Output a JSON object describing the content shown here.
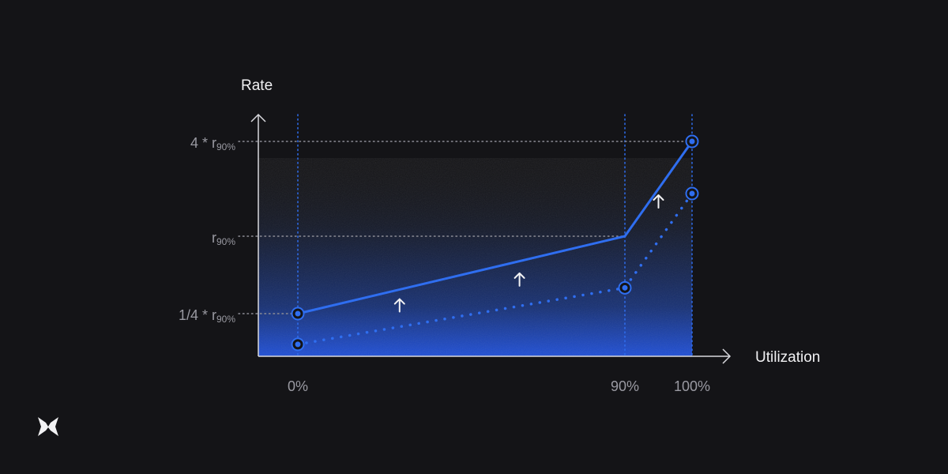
{
  "chart_data": {
    "type": "line",
    "title": "",
    "xlabel": "Utilization",
    "ylabel": "Rate",
    "x_ticks": [
      {
        "value": 0,
        "label": "0%"
      },
      {
        "value": 90,
        "label": "90%"
      },
      {
        "value": 100,
        "label": "100%"
      }
    ],
    "y_ticks": [
      {
        "value": 0.25,
        "main": "1/4 * r",
        "sub": "90%"
      },
      {
        "value": 1,
        "main": "r",
        "sub": "90%"
      },
      {
        "value": 4,
        "main": "4 * r",
        "sub": "90%"
      }
    ],
    "series": [
      {
        "style": "solid",
        "color": "#2f6ef0",
        "points": [
          {
            "x": 0,
            "y": 0.25
          },
          {
            "x": 90,
            "y": 1
          },
          {
            "x": 100,
            "y": 4
          }
        ],
        "markers": [
          0,
          2
        ]
      },
      {
        "style": "dotted",
        "color": "#2f6ef0",
        "points": [
          {
            "x": 0,
            "y": 0.07
          },
          {
            "x": 90,
            "y": 0.5
          },
          {
            "x": 100,
            "y": 2.35
          }
        ],
        "markers": [
          0,
          1,
          2
        ]
      }
    ],
    "annotations": [
      {
        "type": "up-arrow",
        "x": 28,
        "y": 0.33
      },
      {
        "type": "up-arrow",
        "x": 61,
        "y": 0.58
      },
      {
        "type": "up-arrow",
        "x": 95,
        "y": 2.1
      }
    ],
    "grid": "dotted reference lines at tick values",
    "accent_color": "#2f6ef0"
  },
  "logo": {
    "icon": "butterfly-logo-icon"
  }
}
